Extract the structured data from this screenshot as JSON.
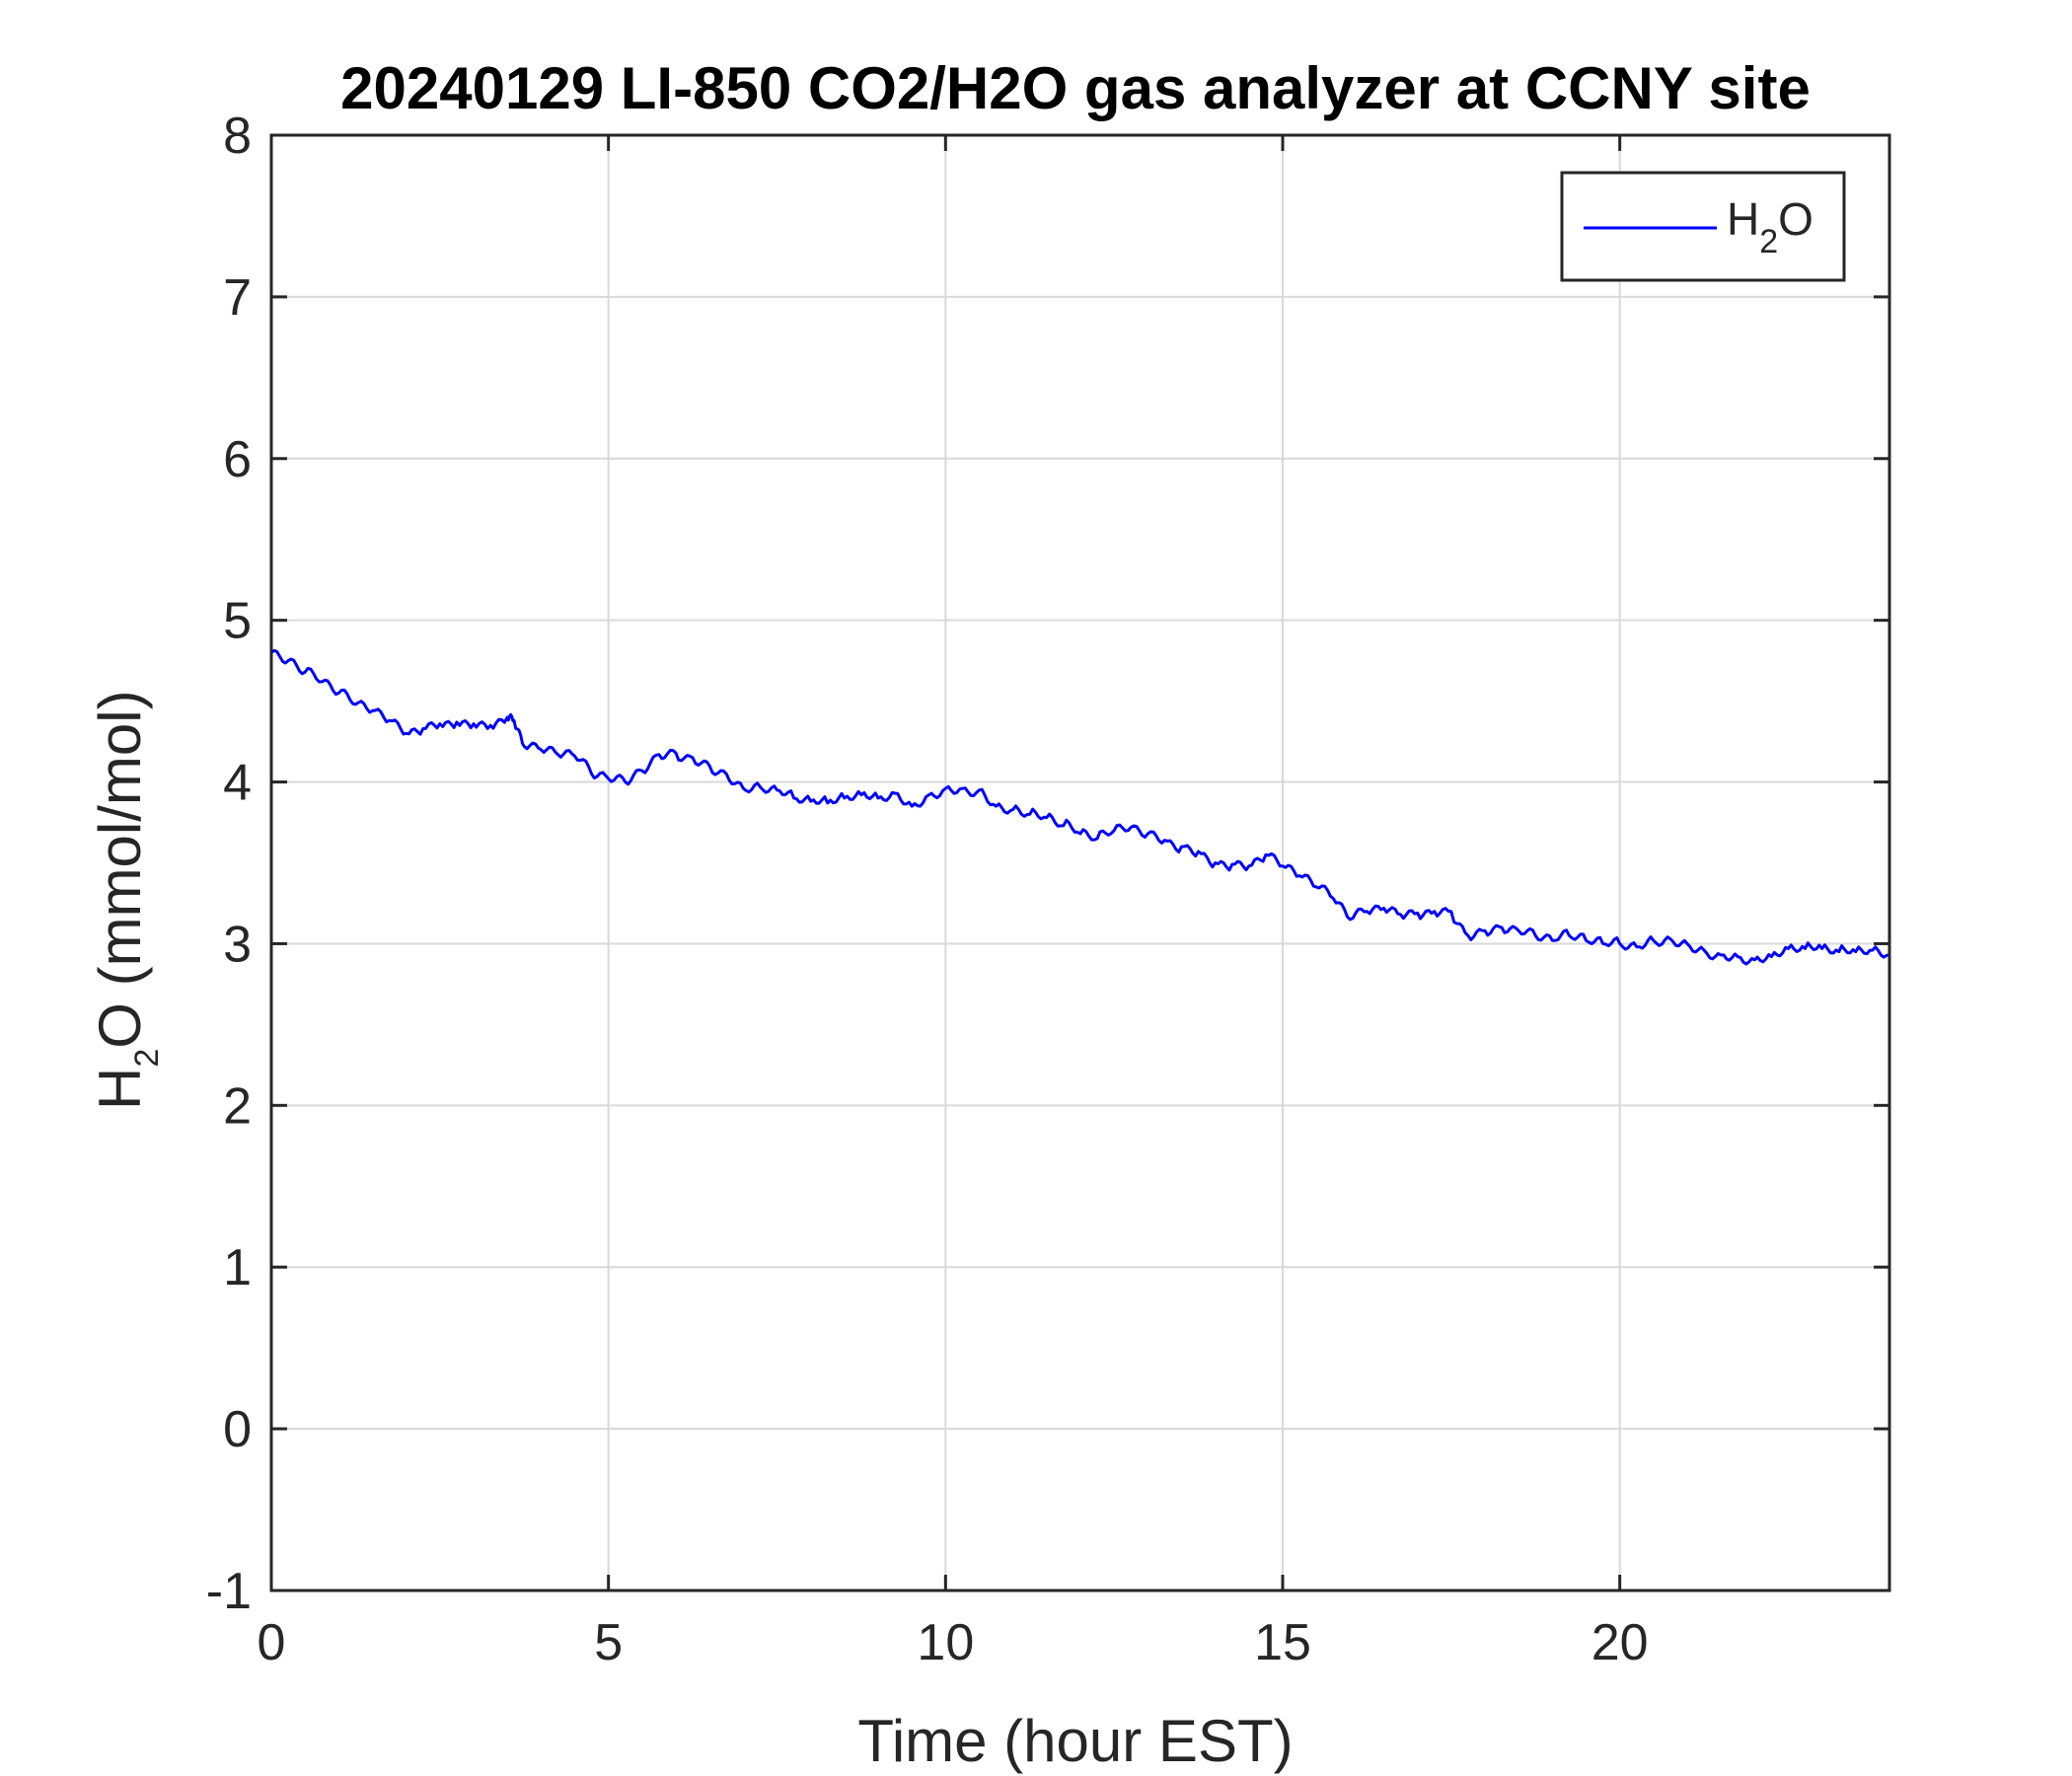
{
  "chart_data": {
    "type": "line",
    "title": "20240129 LI-850 CO2/H2O gas analyzer at CCNY site",
    "xlabel": "Time (hour EST)",
    "ylabel": {
      "main": "H",
      "subscript": "2",
      "rest": "O (mmol/mol)"
    },
    "xlim": [
      0,
      24
    ],
    "ylim": [
      -1,
      8
    ],
    "xticks": [
      0,
      5,
      10,
      15,
      20
    ],
    "yticks": [
      -1,
      0,
      1,
      2,
      3,
      4,
      5,
      6,
      7,
      8
    ],
    "grid": true,
    "legend_position": "top-right",
    "colors": {
      "series": "#0000ff",
      "grid": "#d9d9d9",
      "axes": "#262626"
    },
    "series": [
      {
        "name": {
          "main": "H",
          "subscript": "2",
          "rest": "O"
        },
        "x": [
          0,
          0.25,
          0.5,
          0.75,
          1.0,
          1.25,
          1.5,
          1.75,
          2.0,
          2.25,
          2.5,
          2.75,
          3.0,
          3.25,
          3.5,
          3.6,
          3.75,
          4.0,
          4.25,
          4.5,
          4.75,
          5.0,
          5.25,
          5.5,
          5.75,
          6.0,
          6.25,
          6.5,
          6.75,
          7.0,
          7.25,
          7.5,
          7.75,
          8.0,
          8.25,
          8.5,
          8.75,
          9.0,
          9.25,
          9.5,
          9.75,
          10.0,
          10.25,
          10.5,
          10.75,
          11.0,
          11.25,
          11.5,
          11.75,
          12.0,
          12.25,
          12.5,
          12.75,
          13.0,
          13.25,
          13.5,
          13.75,
          14.0,
          14.25,
          14.5,
          14.75,
          15.0,
          15.25,
          15.5,
          15.75,
          16.0,
          16.25,
          16.5,
          16.75,
          17.0,
          17.25,
          17.5,
          17.75,
          18.0,
          18.25,
          18.5,
          18.75,
          19.0,
          19.25,
          19.5,
          19.75,
          20.0,
          20.25,
          20.5,
          20.75,
          21.0,
          21.25,
          21.5,
          21.75,
          22.0,
          22.25,
          22.5,
          22.75,
          23.0,
          23.25,
          23.5,
          23.75,
          24.0
        ],
        "values": [
          4.8,
          4.75,
          4.68,
          4.62,
          4.55,
          4.48,
          4.44,
          4.38,
          4.3,
          4.33,
          4.36,
          4.37,
          4.36,
          4.35,
          4.4,
          4.38,
          4.22,
          4.2,
          4.17,
          4.16,
          4.05,
          4.02,
          4.0,
          4.07,
          4.17,
          4.18,
          4.15,
          4.1,
          4.05,
          3.96,
          3.97,
          3.95,
          3.9,
          3.88,
          3.87,
          3.9,
          3.92,
          3.9,
          3.93,
          3.85,
          3.92,
          3.96,
          3.96,
          3.95,
          3.85,
          3.83,
          3.8,
          3.78,
          3.73,
          3.68,
          3.65,
          3.7,
          3.72,
          3.68,
          3.64,
          3.6,
          3.57,
          3.5,
          3.49,
          3.48,
          3.55,
          3.48,
          3.42,
          3.35,
          3.28,
          3.15,
          3.2,
          3.22,
          3.18,
          3.19,
          3.2,
          3.2,
          3.05,
          3.08,
          3.1,
          3.08,
          3.05,
          3.02,
          3.05,
          3.02,
          3.0,
          3.0,
          2.98,
          3.02,
          3.03,
          3.0,
          2.96,
          2.93,
          2.92,
          2.9,
          2.92,
          2.97,
          2.97,
          2.97,
          2.95,
          2.95,
          2.96,
          2.93
        ]
      }
    ]
  }
}
